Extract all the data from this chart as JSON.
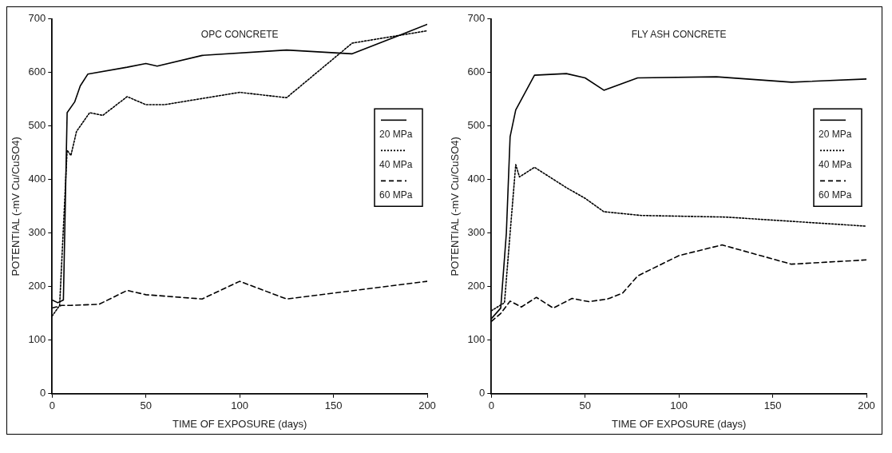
{
  "chart_data": [
    {
      "type": "line",
      "title": "OPC CONCRETE",
      "xlabel": "TIME OF EXPOSURE (days)",
      "ylabel": "POTENTIAL (-mV Cu/CuSO4)",
      "xlim": [
        0,
        200
      ],
      "xticks": [
        0,
        50,
        100,
        150,
        200
      ],
      "ylim": [
        0,
        700
      ],
      "yticks": [
        0,
        100,
        200,
        300,
        400,
        500,
        600,
        700
      ],
      "grid": false,
      "legend": "right",
      "marker": "none",
      "series": [
        {
          "name": "20 MPa",
          "color": "#000000",
          "line_style": "solid",
          "x": [
            0,
            3,
            6,
            8,
            12,
            15,
            19,
            40,
            50,
            56,
            80,
            125,
            160,
            200
          ],
          "values": [
            175,
            170,
            175,
            525,
            545,
            575,
            597,
            610,
            617,
            612,
            632,
            642,
            635,
            690
          ]
        },
        {
          "name": "40 MPa",
          "color": "#000000",
          "line_style": "dotted",
          "x": [
            0,
            4,
            8,
            10,
            13,
            20,
            27,
            40,
            50,
            60,
            100,
            125,
            160,
            200
          ],
          "values": [
            145,
            165,
            455,
            445,
            490,
            525,
            520,
            555,
            540,
            540,
            563,
            553,
            655,
            678
          ]
        },
        {
          "name": "60 MPa",
          "color": "#000000",
          "line_style": "dashed",
          "x": [
            0,
            5,
            10,
            25,
            40,
            50,
            80,
            100,
            125,
            200
          ],
          "values": [
            160,
            165,
            165,
            167,
            193,
            185,
            177,
            210,
            177,
            210
          ]
        }
      ]
    },
    {
      "type": "line",
      "title": "FLY ASH CONCRETE",
      "xlabel": "TIME OF EXPOSURE (days)",
      "ylabel": "POTENTIAL (-mV Cu/CuSO4)",
      "xlim": [
        0,
        200
      ],
      "xticks": [
        0,
        50,
        100,
        150,
        200
      ],
      "ylim": [
        0,
        700
      ],
      "yticks": [
        0,
        100,
        200,
        300,
        400,
        500,
        600,
        700
      ],
      "grid": false,
      "legend": "right",
      "marker": "none",
      "series": [
        {
          "name": "20 MPa",
          "color": "#000000",
          "line_style": "solid",
          "x": [
            0,
            5,
            8,
            10,
            13,
            23,
            40,
            50,
            60,
            78,
            120,
            160,
            200
          ],
          "values": [
            140,
            160,
            300,
            480,
            530,
            595,
            598,
            590,
            567,
            590,
            592,
            582,
            588
          ]
        },
        {
          "name": "40 MPa",
          "color": "#000000",
          "line_style": "dotted",
          "x": [
            0,
            7,
            10,
            13,
            15,
            23,
            40,
            50,
            60,
            80,
            125,
            200
          ],
          "values": [
            155,
            170,
            300,
            428,
            405,
            423,
            385,
            365,
            340,
            333,
            330,
            313
          ]
        },
        {
          "name": "60 MPa",
          "color": "#000000",
          "line_style": "dashed",
          "x": [
            0,
            5,
            10,
            16,
            24,
            33,
            43,
            52,
            62,
            70,
            78,
            100,
            123,
            160,
            200
          ],
          "values": [
            135,
            150,
            173,
            162,
            180,
            160,
            178,
            172,
            177,
            188,
            220,
            258,
            278,
            242,
            250
          ]
        }
      ]
    }
  ]
}
